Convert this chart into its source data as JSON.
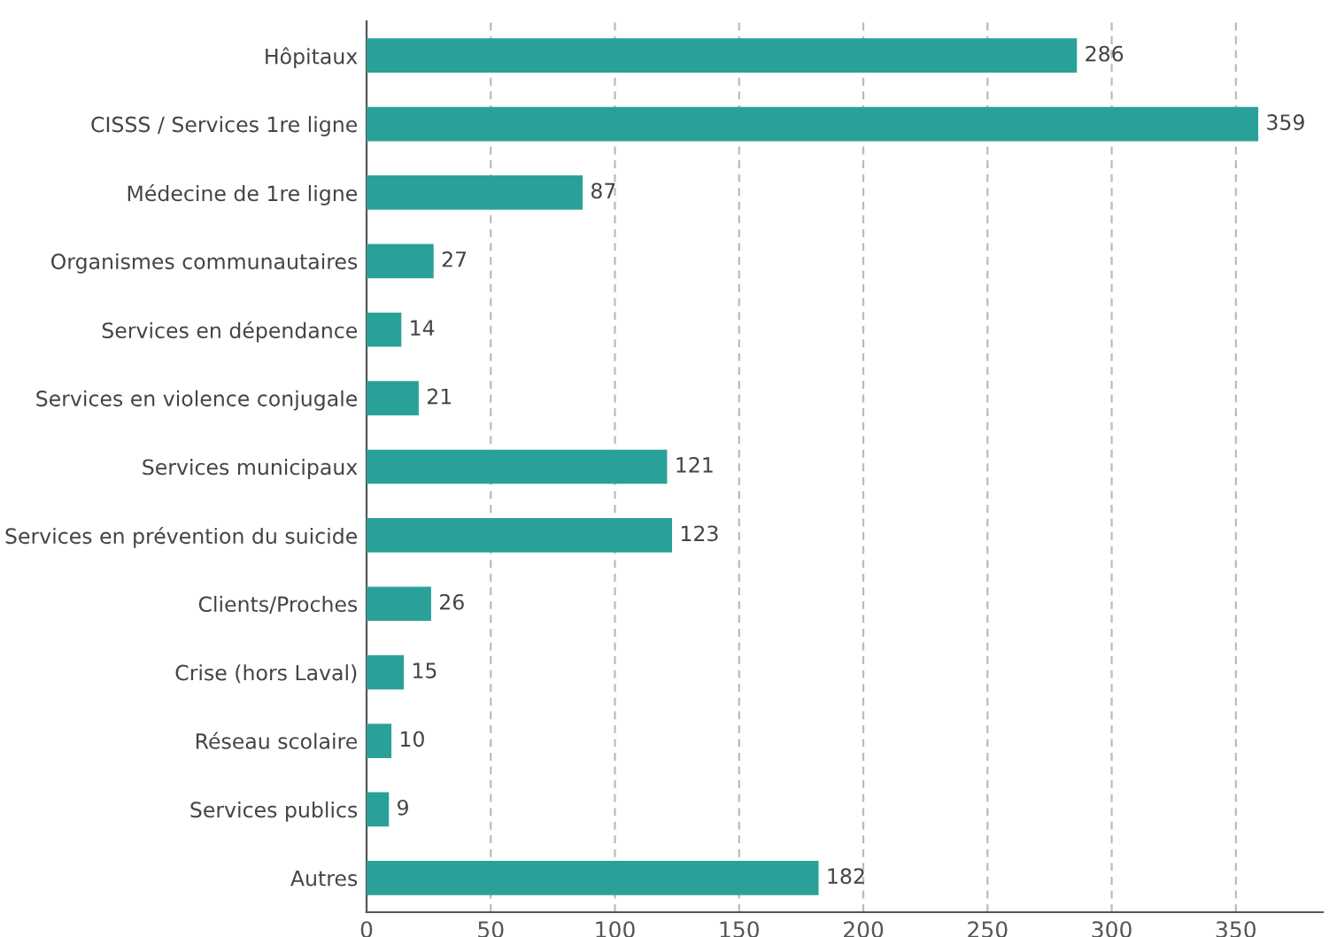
{
  "chart_data": {
    "type": "bar",
    "orientation": "horizontal",
    "categories": [
      "Hôpitaux",
      "CISSS / Services 1re ligne",
      "Médecine de 1re ligne",
      "Organismes communautaires",
      "Services en dépendance",
      "Services en violence conjugale",
      "Services municipaux",
      "Services en prévention du suicide",
      "Clients/Proches",
      "Crise (hors Laval)",
      "Réseau scolaire",
      "Services publics",
      "Autres"
    ],
    "values": [
      286,
      359,
      87,
      27,
      14,
      21,
      121,
      123,
      26,
      15,
      10,
      9,
      182
    ],
    "color": "#2aa198",
    "xlim": [
      0,
      385
    ],
    "xticks": [
      0,
      50,
      100,
      150,
      200,
      250,
      300,
      350
    ],
    "grid": "x",
    "data_labels": true
  }
}
